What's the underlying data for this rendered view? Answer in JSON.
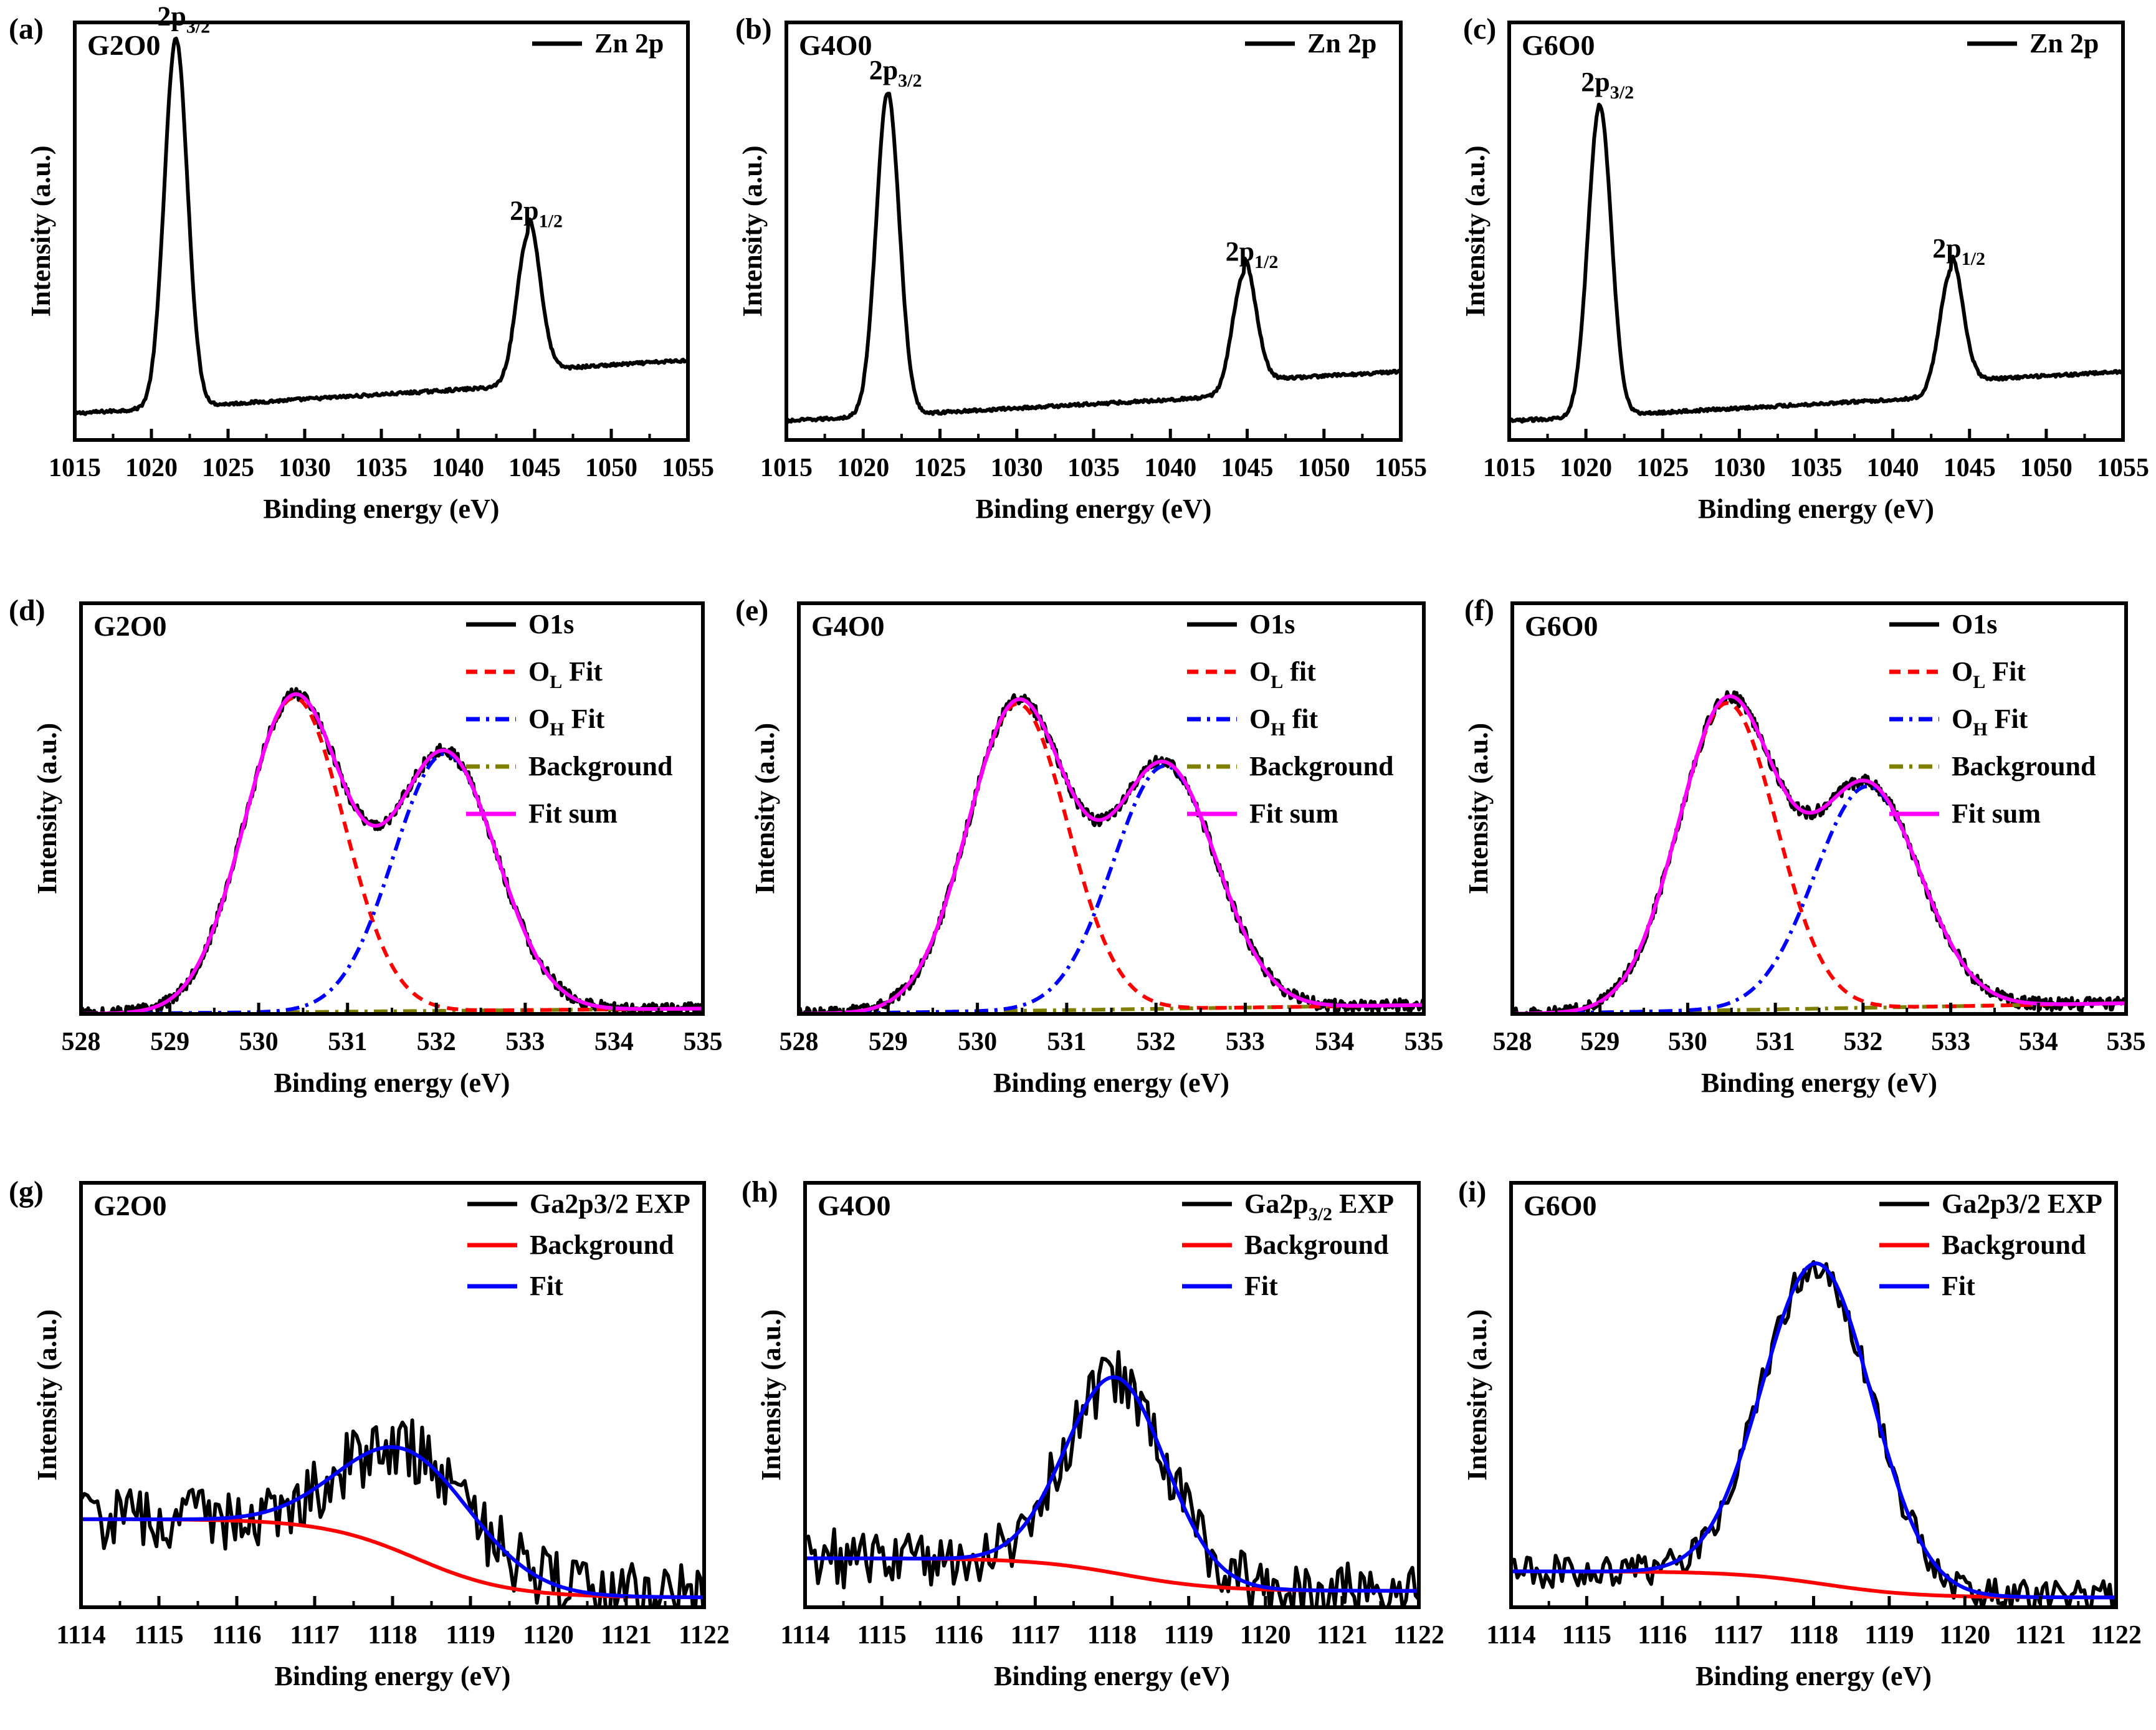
{
  "figure": {
    "panels": [
      {
        "letter": "(a)",
        "sample": "G2O0",
        "ylabel": "Intensity (a.u.)",
        "xlabel": "Binding energy (eV)"
      },
      {
        "letter": "(b)",
        "sample": "G4O0",
        "ylabel": "Intensity (a.u.)",
        "xlabel": "Binding energy (eV)"
      },
      {
        "letter": "(c)",
        "sample": "G6O0",
        "ylabel": "Intensity (a.u.)",
        "xlabel": "Binding energy (eV)"
      },
      {
        "letter": "(d)",
        "sample": "G2O0",
        "ylabel": "Intensity (a.u.)",
        "xlabel": "Binding energy (eV)"
      },
      {
        "letter": "(e)",
        "sample": "G4O0",
        "ylabel": "Intensity (a.u.)",
        "xlabel": "Binding energy (eV)"
      },
      {
        "letter": "(f)",
        "sample": "G6O0",
        "ylabel": "Intensity (a.u.)",
        "xlabel": "Binding energy (eV)"
      },
      {
        "letter": "(g)",
        "sample": "G2O0",
        "ylabel": "Intensity (a.u.)",
        "xlabel": "Binding energy (eV)"
      },
      {
        "letter": "(h)",
        "sample": "G4O0",
        "ylabel": "Intensity (a.u.)",
        "xlabel": "Binding energy (eV)"
      },
      {
        "letter": "(i)",
        "sample": "G6O0",
        "ylabel": "Intensity (a.u.)",
        "xlabel": "Binding energy (eV)"
      }
    ]
  },
  "chart_data": [
    {
      "type": "line",
      "panel": "(a)",
      "xlim": [
        1015,
        1055
      ],
      "xticks": [
        1015,
        1020,
        1025,
        1030,
        1035,
        1040,
        1045,
        1050,
        1055
      ],
      "ylim": [
        0,
        1.1
      ],
      "y_ticks_shown": false,
      "grid": false,
      "legend_position": "top-right",
      "series": [
        {
          "name": "Zn 2p",
          "color": "#000000",
          "style": "solid"
        }
      ],
      "peaks": [
        {
          "center": 1021.6,
          "height": 0.97,
          "sigma": 0.75,
          "label": "2p",
          "sub": "3/2"
        },
        {
          "center": 1044.6,
          "height": 0.4,
          "sigma": 0.75,
          "label": "2p",
          "sub": "1/2"
        }
      ],
      "baseline": {
        "start": 0.07,
        "end": 0.17,
        "step_at": 1044.6,
        "step": 0.04
      }
    },
    {
      "type": "line",
      "panel": "(b)",
      "xlim": [
        1015,
        1055
      ],
      "xticks": [
        1015,
        1020,
        1025,
        1030,
        1035,
        1040,
        1045,
        1050,
        1055
      ],
      "ylim": [
        0,
        1.1
      ],
      "y_ticks_shown": false,
      "grid": false,
      "legend_position": "top-right",
      "series": [
        {
          "name": "Zn 2p",
          "color": "#000000",
          "style": "solid"
        }
      ],
      "peaks": [
        {
          "center": 1021.6,
          "height": 0.85,
          "sigma": 0.75,
          "label": "2p",
          "sub": "3/2"
        },
        {
          "center": 1044.8,
          "height": 0.32,
          "sigma": 0.75,
          "label": "2p",
          "sub": "1/2"
        }
      ],
      "baseline": {
        "start": 0.05,
        "end": 0.14,
        "step_at": 1044.8,
        "step": 0.04
      }
    },
    {
      "type": "line",
      "panel": "(c)",
      "xlim": [
        1015,
        1055
      ],
      "xticks": [
        1015,
        1020,
        1025,
        1030,
        1035,
        1040,
        1045,
        1050,
        1055
      ],
      "ylim": [
        0,
        1.1
      ],
      "y_ticks_shown": false,
      "grid": false,
      "legend_position": "top-right",
      "series": [
        {
          "name": "Zn 2p",
          "color": "#000000",
          "style": "solid"
        }
      ],
      "peaks": [
        {
          "center": 1020.9,
          "height": 0.82,
          "sigma": 0.75,
          "label": "2p",
          "sub": "3/2"
        },
        {
          "center": 1043.8,
          "height": 0.33,
          "sigma": 0.75,
          "label": "2p",
          "sub": "1/2"
        }
      ],
      "baseline": {
        "start": 0.05,
        "end": 0.14,
        "step_at": 1043.8,
        "step": 0.04
      }
    },
    {
      "type": "line",
      "panel": "(d)",
      "xlim": [
        528,
        535
      ],
      "xticks": [
        528,
        529,
        530,
        531,
        532,
        533,
        534,
        535
      ],
      "ylim": [
        0,
        1.15
      ],
      "y_ticks_shown": false,
      "grid": false,
      "legend_position": "top-right",
      "series": [
        {
          "name": "O1s",
          "color": "#000000",
          "style": "solid",
          "role": "exp"
        },
        {
          "name": "O",
          "sub": "L",
          "suffix": " Fit",
          "color": "#ff0000",
          "style": "dash",
          "role": "c1"
        },
        {
          "name": "O",
          "sub": "H",
          "suffix": " Fit",
          "color": "#0000ff",
          "style": "dashdot",
          "role": "c2"
        },
        {
          "name": "Background",
          "color": "#808000",
          "style": "dashdot",
          "role": "bg"
        },
        {
          "name": "Fit sum",
          "color": "#ff00ff",
          "style": "solid",
          "role": "sum"
        }
      ],
      "components": [
        {
          "center": 530.4,
          "height": 0.88,
          "sigma": 0.56
        },
        {
          "center": 532.1,
          "height": 0.72,
          "sigma": 0.58
        }
      ],
      "background": [
        0.0,
        0.015
      ]
    },
    {
      "type": "line",
      "panel": "(e)",
      "xlim": [
        528,
        535
      ],
      "xticks": [
        528,
        529,
        530,
        531,
        532,
        533,
        534,
        535
      ],
      "ylim": [
        0,
        1.15
      ],
      "y_ticks_shown": false,
      "grid": false,
      "legend_position": "top-right",
      "series": [
        {
          "name": "O1s",
          "color": "#000000",
          "style": "solid",
          "role": "exp"
        },
        {
          "name": "O",
          "sub": "L",
          "suffix": " fit",
          "color": "#ff0000",
          "style": "dash",
          "role": "c1"
        },
        {
          "name": "O",
          "sub": "H",
          "suffix": " fit",
          "color": "#0000ff",
          "style": "dashdot",
          "role": "c2"
        },
        {
          "name": "Background",
          "color": "#808000",
          "style": "dashdot",
          "role": "bg"
        },
        {
          "name": "Fit sum",
          "color": "#ff00ff",
          "style": "solid",
          "role": "sum"
        }
      ],
      "components": [
        {
          "center": 530.45,
          "height": 0.86,
          "sigma": 0.56
        },
        {
          "center": 532.1,
          "height": 0.68,
          "sigma": 0.58
        }
      ],
      "background": [
        0.0,
        0.025
      ]
    },
    {
      "type": "line",
      "panel": "(f)",
      "xlim": [
        528,
        535
      ],
      "xticks": [
        528,
        529,
        530,
        531,
        532,
        533,
        534,
        535
      ],
      "ylim": [
        0,
        1.15
      ],
      "y_ticks_shown": false,
      "grid": false,
      "legend_position": "top-right",
      "series": [
        {
          "name": "O1s",
          "color": "#000000",
          "style": "solid",
          "role": "exp"
        },
        {
          "name": "O",
          "sub": "L",
          "suffix": " Fit",
          "color": "#ff0000",
          "style": "dash",
          "role": "c1"
        },
        {
          "name": "O",
          "sub": "H",
          "suffix": " Fit",
          "color": "#0000ff",
          "style": "dashdot",
          "role": "c2"
        },
        {
          "name": "Background",
          "color": "#808000",
          "style": "dashdot",
          "role": "bg"
        },
        {
          "name": "Fit sum",
          "color": "#ff00ff",
          "style": "solid",
          "role": "sum"
        }
      ],
      "components": [
        {
          "center": 530.45,
          "height": 0.86,
          "sigma": 0.56
        },
        {
          "center": 532.05,
          "height": 0.62,
          "sigma": 0.6
        }
      ],
      "background": [
        0.0,
        0.03
      ]
    },
    {
      "type": "line",
      "panel": "(g)",
      "xlim": [
        1114,
        1122
      ],
      "xticks": [
        1114,
        1115,
        1116,
        1117,
        1118,
        1119,
        1120,
        1121,
        1122
      ],
      "ylim": [
        0,
        1.3
      ],
      "y_ticks_shown": false,
      "grid": false,
      "legend_position": "top-right",
      "series": [
        {
          "name": "Ga2p3/2 EXP",
          "color": "#000000",
          "style": "solid",
          "role": "exp"
        },
        {
          "name": "Background",
          "color": "#ff0000",
          "style": "solid",
          "role": "bg"
        },
        {
          "name": "Fit",
          "color": "#0000ff",
          "style": "solid",
          "role": "fit"
        }
      ],
      "peak": {
        "center": 1118.2,
        "height": 0.32,
        "sigma": 0.85
      },
      "bg_levels": [
        0.27,
        0.03
      ],
      "noise": 0.1
    },
    {
      "type": "line",
      "panel": "(h)",
      "xlim": [
        1114,
        1122
      ],
      "xticks": [
        1114,
        1115,
        1116,
        1117,
        1118,
        1119,
        1120,
        1121,
        1122
      ],
      "ylim": [
        0,
        1.3
      ],
      "y_ticks_shown": false,
      "grid": false,
      "legend_position": "top-right",
      "series": [
        {
          "name": "Ga2p",
          "sub": "3/2",
          "suffix": " EXP",
          "color": "#000000",
          "style": "solid",
          "role": "exp"
        },
        {
          "name": "Background",
          "color": "#ff0000",
          "style": "solid",
          "role": "bg"
        },
        {
          "name": "Fit",
          "color": "#0000ff",
          "style": "solid",
          "role": "fit"
        }
      ],
      "peak": {
        "center": 1118.05,
        "height": 0.6,
        "sigma": 0.65
      },
      "bg_levels": [
        0.15,
        0.05
      ],
      "noise": 0.09
    },
    {
      "type": "line",
      "panel": "(i)",
      "xlim": [
        1114,
        1122
      ],
      "xticks": [
        1114,
        1115,
        1116,
        1117,
        1118,
        1119,
        1120,
        1121,
        1122
      ],
      "ylim": [
        0,
        1.3
      ],
      "y_ticks_shown": false,
      "grid": false,
      "legend_position": "top-right",
      "series": [
        {
          "name": "Ga2p3/2 EXP",
          "color": "#000000",
          "style": "solid",
          "role": "exp"
        },
        {
          "name": "Background",
          "color": "#ff0000",
          "style": "solid",
          "role": "bg"
        },
        {
          "name": "Fit",
          "color": "#0000ff",
          "style": "solid",
          "role": "fit"
        }
      ],
      "peak": {
        "center": 1118.05,
        "height": 0.98,
        "sigma": 0.72
      },
      "bg_levels": [
        0.11,
        0.03
      ],
      "noise": 0.05
    }
  ]
}
